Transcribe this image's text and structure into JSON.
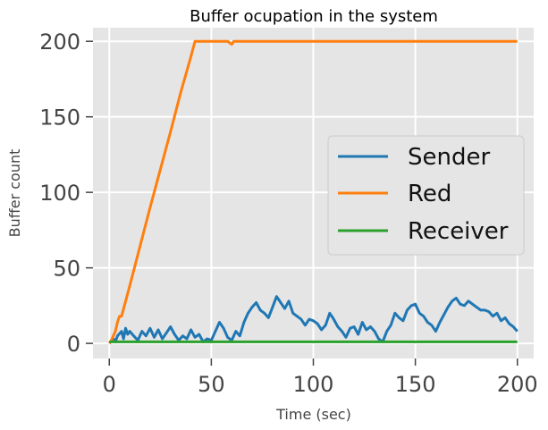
{
  "chart_data": {
    "type": "line",
    "title": "Buffer ocupation in the system",
    "xlabel": "Time (sec)",
    "ylabel": "Buffer count",
    "xlim": [
      -8,
      208
    ],
    "ylim": [
      -10,
      209
    ],
    "xticks": [
      0,
      50,
      100,
      150,
      200
    ],
    "yticks": [
      0,
      50,
      100,
      150,
      200
    ],
    "grid": true,
    "legend": "center-right",
    "background": "#e5e5e5",
    "series": [
      {
        "name": "Sender",
        "color": "#1f77b4",
        "x": [
          0,
          2,
          3,
          4,
          6,
          7,
          8,
          9,
          10,
          12,
          14,
          16,
          18,
          20,
          22,
          24,
          26,
          28,
          30,
          32,
          34,
          36,
          38,
          40,
          42,
          44,
          46,
          48,
          50,
          52,
          54,
          56,
          58,
          60,
          62,
          64,
          66,
          68,
          70,
          72,
          74,
          76,
          78,
          80,
          82,
          84,
          86,
          88,
          90,
          92,
          94,
          96,
          98,
          100,
          102,
          104,
          106,
          108,
          110,
          112,
          114,
          116,
          118,
          120,
          122,
          124,
          126,
          128,
          130,
          132,
          134,
          136,
          138,
          140,
          142,
          144,
          146,
          148,
          150,
          152,
          154,
          156,
          158,
          160,
          162,
          164,
          166,
          168,
          170,
          172,
          174,
          176,
          178,
          180,
          182,
          184,
          186,
          188,
          190,
          192,
          194,
          196,
          198,
          200
        ],
        "values": [
          0,
          3,
          1,
          5,
          8,
          3,
          10,
          6,
          8,
          5,
          2,
          8,
          5,
          10,
          4,
          9,
          3,
          7,
          11,
          6,
          2,
          5,
          3,
          9,
          4,
          6,
          1,
          3,
          2,
          8,
          14,
          10,
          4,
          2,
          8,
          5,
          14,
          20,
          24,
          27,
          22,
          20,
          17,
          24,
          31,
          27,
          23,
          28,
          20,
          18,
          16,
          12,
          16,
          15,
          13,
          9,
          12,
          20,
          16,
          11,
          8,
          4,
          10,
          11,
          6,
          14,
          9,
          11,
          8,
          3,
          1,
          8,
          12,
          20,
          17,
          15,
          22,
          25,
          26,
          20,
          18,
          14,
          12,
          8,
          14,
          19,
          24,
          28,
          30,
          26,
          25,
          28,
          26,
          24,
          22,
          22,
          21,
          18,
          20,
          15,
          17,
          13,
          11,
          8
        ]
      },
      {
        "name": "Red",
        "color": "#ff7f0e",
        "x": [
          0,
          1,
          3,
          4,
          5,
          6,
          10,
          15,
          20,
          25,
          30,
          35,
          40,
          42,
          43,
          50,
          58,
          59,
          60,
          61,
          62,
          70,
          100,
          150,
          200
        ],
        "values": [
          0,
          2,
          8,
          14,
          18,
          18,
          38,
          64,
          90,
          115,
          140,
          166,
          190,
          200,
          200,
          200,
          200,
          199,
          198,
          200,
          200,
          200,
          200,
          200,
          200
        ]
      },
      {
        "name": "Receiver",
        "color": "#2ca02c",
        "x": [
          0,
          200
        ],
        "values": [
          1,
          1
        ]
      }
    ]
  }
}
